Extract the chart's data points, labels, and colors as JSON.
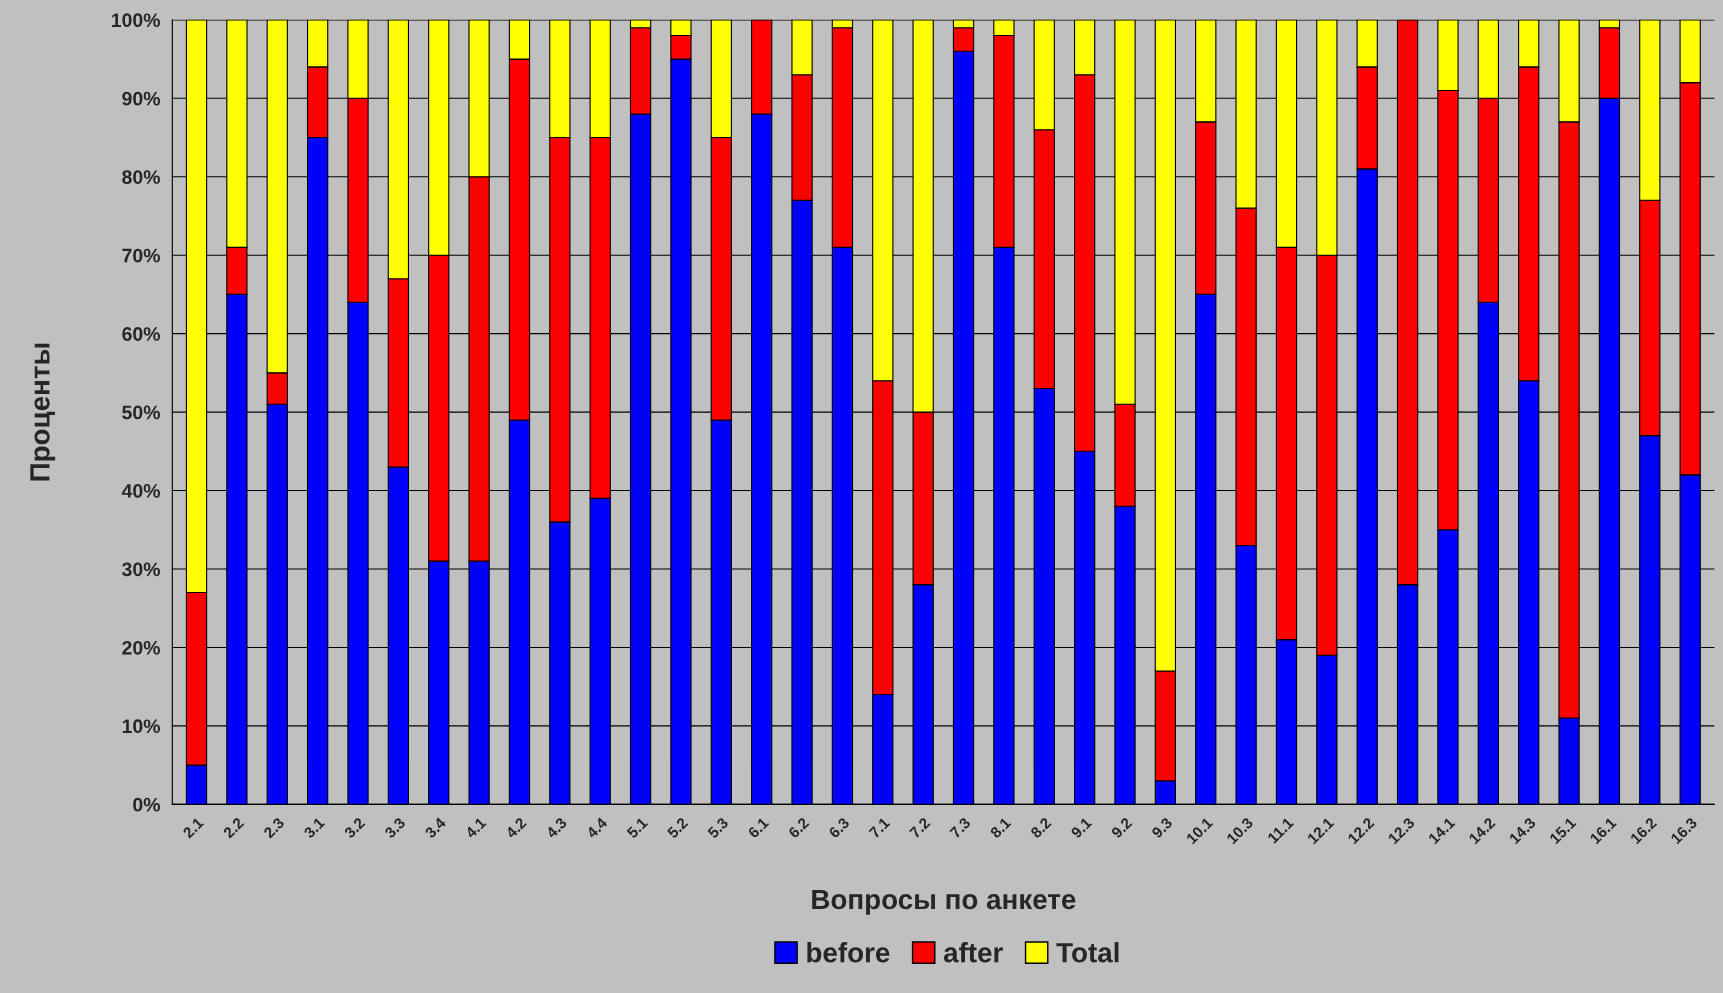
{
  "chart_data": {
    "type": "bar",
    "stacked": true,
    "xlabel": "Вопросы по анкете",
    "ylabel": "Проценты",
    "categories": [
      "2.1",
      "2.2",
      "2.3",
      "3.1",
      "3.2",
      "3.3",
      "3.4",
      "4.1",
      "4.2",
      "4.3",
      "4.4",
      "5.1",
      "5.2",
      "5.3",
      "6.1",
      "6.2",
      "6.3",
      "7.1",
      "7.2",
      "7.3",
      "8.1",
      "8.2",
      "9.1",
      "9.2",
      "9.3",
      "10.1",
      "10.3",
      "11.1",
      "12.1",
      "12.2",
      "12.3",
      "14.1",
      "14.2",
      "14.3",
      "15.1",
      "16.1",
      "16.2",
      "16.3"
    ],
    "series": [
      {
        "name": "before",
        "color": "#0000ff",
        "values": [
          5,
          65,
          51,
          85,
          64,
          43,
          31,
          31,
          49,
          36,
          39,
          88,
          95,
          49,
          88,
          77,
          71,
          14,
          28,
          96,
          71,
          53,
          45,
          38,
          3,
          65,
          33,
          21,
          19,
          81,
          28,
          35,
          64,
          54,
          11,
          90,
          47,
          42
        ]
      },
      {
        "name": "after",
        "color": "#ff0000",
        "values": [
          22,
          6,
          4,
          9,
          26,
          24,
          39,
          49,
          46,
          49,
          46,
          11,
          3,
          36,
          12,
          16,
          28,
          40,
          22,
          3,
          27,
          33,
          48,
          13,
          14,
          22,
          43,
          50,
          51,
          13,
          72,
          56,
          26,
          40,
          76,
          9,
          30,
          50
        ]
      },
      {
        "name": "Total",
        "color": "#ffff00",
        "values": [
          73,
          29,
          45,
          6,
          10,
          33,
          30,
          20,
          5,
          15,
          15,
          1,
          2,
          15,
          null,
          7,
          1,
          46,
          50,
          1,
          2,
          14,
          7,
          49,
          83,
          13,
          24,
          29,
          30,
          6,
          null,
          9,
          10,
          6,
          13,
          1,
          23,
          8
        ]
      }
    ],
    "ylim": [
      0,
      100
    ],
    "yticks": [
      {
        "value": 0,
        "label": "0%"
      },
      {
        "value": 10,
        "label": "10%"
      },
      {
        "value": 20,
        "label": "20%"
      },
      {
        "value": 30,
        "label": "30%"
      },
      {
        "value": 40,
        "label": "40%"
      },
      {
        "value": 50,
        "label": "50%"
      },
      {
        "value": 60,
        "label": "60%"
      },
      {
        "value": 70,
        "label": "70%"
      },
      {
        "value": 80,
        "label": "80%"
      },
      {
        "value": 90,
        "label": "90%"
      },
      {
        "value": 100,
        "label": "100%"
      }
    ],
    "grid": "y",
    "legend": "bottom"
  }
}
